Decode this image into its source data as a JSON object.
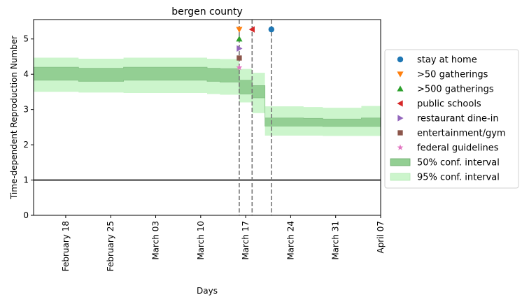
{
  "chart_data": {
    "type": "line",
    "title": "bergen county",
    "xlabel": "Days",
    "ylabel": "Time-dependent Reproduction Number",
    "xlim": [
      "2020-02-13",
      "2020-04-07"
    ],
    "ylim": [
      0,
      5.55
    ],
    "x_ticks": [
      {
        "date": "2020-02-18",
        "label": "February 18"
      },
      {
        "date": "2020-02-25",
        "label": "February 25"
      },
      {
        "date": "2020-03-03",
        "label": "March 03"
      },
      {
        "date": "2020-03-10",
        "label": "March 10"
      },
      {
        "date": "2020-03-17",
        "label": "March 17"
      },
      {
        "date": "2020-03-24",
        "label": "March 24"
      },
      {
        "date": "2020-03-31",
        "label": "March 31"
      },
      {
        "date": "2020-04-07",
        "label": "April 07"
      }
    ],
    "y_ticks": [
      0,
      1,
      2,
      3,
      4,
      5
    ],
    "reference_line": {
      "y": 1,
      "color": "#000000"
    },
    "grid": false,
    "legend_position": "outside right",
    "series": [
      {
        "name": "95% conf. interval",
        "color": "#ccf5cc",
        "x": [
          "2020-02-13",
          "2020-02-20",
          "2020-02-20",
          "2020-02-27",
          "2020-02-27",
          "2020-03-11",
          "2020-03-11",
          "2020-03-13",
          "2020-03-13",
          "2020-03-16",
          "2020-03-16",
          "2020-03-18",
          "2020-03-18",
          "2020-03-20",
          "2020-03-20",
          "2020-03-26",
          "2020-03-26",
          "2020-03-29",
          "2020-03-29",
          "2020-04-04",
          "2020-04-04",
          "2020-04-07"
        ],
        "lower": [
          3.5,
          3.5,
          3.48,
          3.48,
          3.47,
          3.47,
          3.44,
          3.44,
          3.42,
          3.42,
          3.2,
          3.2,
          2.9,
          2.9,
          2.26,
          2.26,
          2.26,
          2.26,
          2.25,
          2.25,
          2.25,
          2.25
        ],
        "upper": [
          4.47,
          4.47,
          4.44,
          4.44,
          4.47,
          4.47,
          4.44,
          4.44,
          4.43,
          4.43,
          4.15,
          4.15,
          4.04,
          4.04,
          3.09,
          3.09,
          3.07,
          3.07,
          3.05,
          3.05,
          3.1,
          3.1
        ]
      },
      {
        "name": "50% conf. interval",
        "color": "#93cf93",
        "x": [
          "2020-02-13",
          "2020-02-20",
          "2020-02-20",
          "2020-02-27",
          "2020-02-27",
          "2020-03-11",
          "2020-03-11",
          "2020-03-13",
          "2020-03-13",
          "2020-03-16",
          "2020-03-16",
          "2020-03-18",
          "2020-03-18",
          "2020-03-20",
          "2020-03-20",
          "2020-03-26",
          "2020-03-26",
          "2020-03-29",
          "2020-03-29",
          "2020-04-04",
          "2020-04-04",
          "2020-04-07"
        ],
        "lower": [
          3.83,
          3.83,
          3.8,
          3.8,
          3.83,
          3.83,
          3.8,
          3.8,
          3.78,
          3.78,
          3.44,
          3.44,
          3.33,
          3.33,
          2.53,
          2.53,
          2.53,
          2.53,
          2.52,
          2.52,
          2.52,
          2.52
        ],
        "upper": [
          4.2,
          4.2,
          4.17,
          4.17,
          4.2,
          4.2,
          4.17,
          4.17,
          4.16,
          4.16,
          3.83,
          3.83,
          3.68,
          3.68,
          2.76,
          2.76,
          2.75,
          2.75,
          2.73,
          2.73,
          2.76,
          2.76
        ]
      }
    ],
    "interventions": [
      {
        "name": "stay at home",
        "date": "2020-03-21",
        "y": 5.27,
        "marker": "circle",
        "color": "#1f77b4"
      },
      {
        "name": ">50 gatherings",
        "date": "2020-03-16",
        "y": 5.27,
        "marker": "triangle_down",
        "color": "#ff7f0e"
      },
      {
        "name": ">500 gatherings",
        "date": "2020-03-16",
        "y": 5.0,
        "marker": "triangle_up",
        "color": "#2ca02c"
      },
      {
        "name": "public schools",
        "date": "2020-03-18",
        "y": 5.27,
        "marker": "triangle_left",
        "color": "#d62728"
      },
      {
        "name": "restaurant dine-in",
        "date": "2020-03-16",
        "y": 4.73,
        "marker": "triangle_right",
        "color": "#9467bd"
      },
      {
        "name": "entertainment/gym",
        "date": "2020-03-16",
        "y": 4.46,
        "marker": "square",
        "color": "#8c564b"
      },
      {
        "name": "federal guidelines",
        "date": "2020-03-16",
        "y": 4.19,
        "marker": "star",
        "color": "#e377c2"
      }
    ],
    "vlines": [
      "2020-03-16",
      "2020-03-18",
      "2020-03-21"
    ],
    "legend": [
      {
        "label": "stay at home",
        "marker": "circle",
        "color": "#1f77b4"
      },
      {
        "label": ">50 gatherings",
        "marker": "triangle_down",
        "color": "#ff7f0e"
      },
      {
        "label": ">500 gatherings",
        "marker": "triangle_up",
        "color": "#2ca02c"
      },
      {
        "label": "public schools",
        "marker": "triangle_left",
        "color": "#d62728"
      },
      {
        "label": "restaurant dine-in",
        "marker": "triangle_right",
        "color": "#9467bd"
      },
      {
        "label": "entertainment/gym",
        "marker": "square",
        "color": "#8c564b"
      },
      {
        "label": "federal guidelines",
        "marker": "star",
        "color": "#e377c2"
      },
      {
        "label": "50% conf. interval",
        "marker": "patch",
        "color": "#93cf93"
      },
      {
        "label": "95% conf. interval",
        "marker": "patch",
        "color": "#ccf5cc"
      }
    ]
  }
}
